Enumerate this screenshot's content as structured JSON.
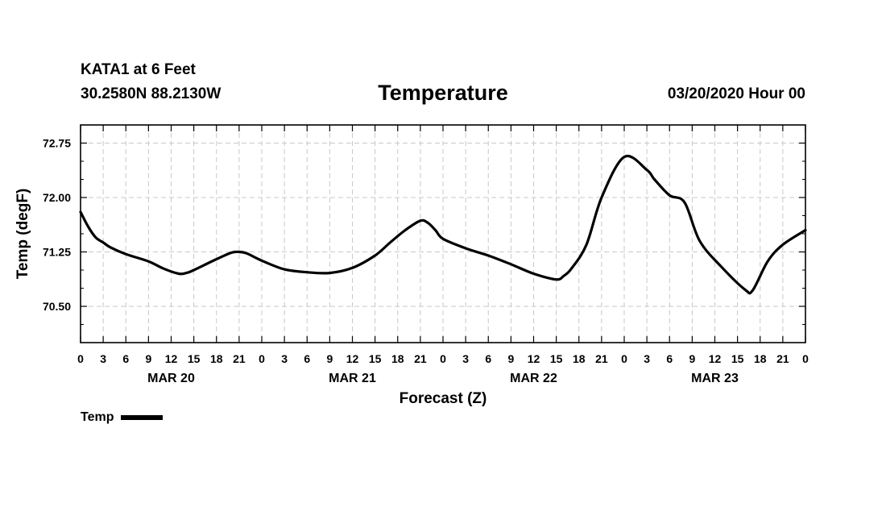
{
  "header": {
    "station": "KATA1 at 6 Feet",
    "coords": "30.2580N 88.2130W",
    "title": "Temperature",
    "datetime": "03/20/2020 Hour 00"
  },
  "legend": {
    "label": "Temp"
  },
  "chart_data": {
    "type": "line",
    "title": "Temperature",
    "xlabel": "Forecast (Z)",
    "ylabel": "Temp (degF)",
    "xlim": [
      0,
      96
    ],
    "ylim": [
      70.0,
      73.0
    ],
    "yticks": [
      70.5,
      71.25,
      72.0,
      72.75
    ],
    "ytick_labels": [
      "70.50",
      "71.25",
      "72.00",
      "72.75"
    ],
    "xticks": [
      0,
      3,
      6,
      9,
      12,
      15,
      18,
      21,
      24,
      27,
      30,
      33,
      36,
      39,
      42,
      45,
      48,
      51,
      54,
      57,
      60,
      63,
      66,
      69,
      72,
      75,
      78,
      81,
      84,
      87,
      90,
      93,
      96
    ],
    "xtick_labels": [
      "0",
      "3",
      "6",
      "9",
      "12",
      "15",
      "18",
      "21",
      "0",
      "3",
      "6",
      "9",
      "12",
      "15",
      "18",
      "21",
      "0",
      "3",
      "6",
      "9",
      "12",
      "15",
      "18",
      "21",
      "0",
      "3",
      "6",
      "9",
      "12",
      "15",
      "18",
      "21",
      "0"
    ],
    "day_labels": [
      {
        "label": "MAR 20",
        "x": 12
      },
      {
        "label": "MAR 21",
        "x": 36
      },
      {
        "label": "MAR 22",
        "x": 60
      },
      {
        "label": "MAR 23",
        "x": 84
      }
    ],
    "grid": true,
    "legend_position": "bottom-left",
    "series": [
      {
        "name": "Temp",
        "x": [
          0,
          1,
          2,
          3,
          4,
          6,
          9,
          11,
          13,
          14,
          15,
          18,
          20,
          21,
          22,
          24,
          27,
          30,
          33,
          36,
          39,
          41,
          43,
          45,
          46,
          47,
          48,
          51,
          54,
          57,
          60,
          63,
          64,
          65,
          67,
          69,
          72,
          75,
          76,
          78,
          80,
          82,
          85,
          88,
          89,
          91,
          93,
          96
        ],
        "values": [
          71.8,
          71.6,
          71.45,
          71.38,
          71.31,
          71.22,
          71.12,
          71.02,
          70.95,
          70.96,
          71.0,
          71.15,
          71.24,
          71.25,
          71.23,
          71.13,
          71.01,
          70.97,
          70.96,
          71.03,
          71.2,
          71.38,
          71.55,
          71.68,
          71.65,
          71.55,
          71.43,
          71.3,
          71.2,
          71.08,
          70.95,
          70.87,
          70.92,
          71.02,
          71.35,
          72.0,
          72.56,
          72.38,
          72.25,
          72.03,
          71.93,
          71.4,
          71.03,
          70.73,
          70.72,
          71.12,
          71.35,
          71.55
        ]
      }
    ]
  }
}
